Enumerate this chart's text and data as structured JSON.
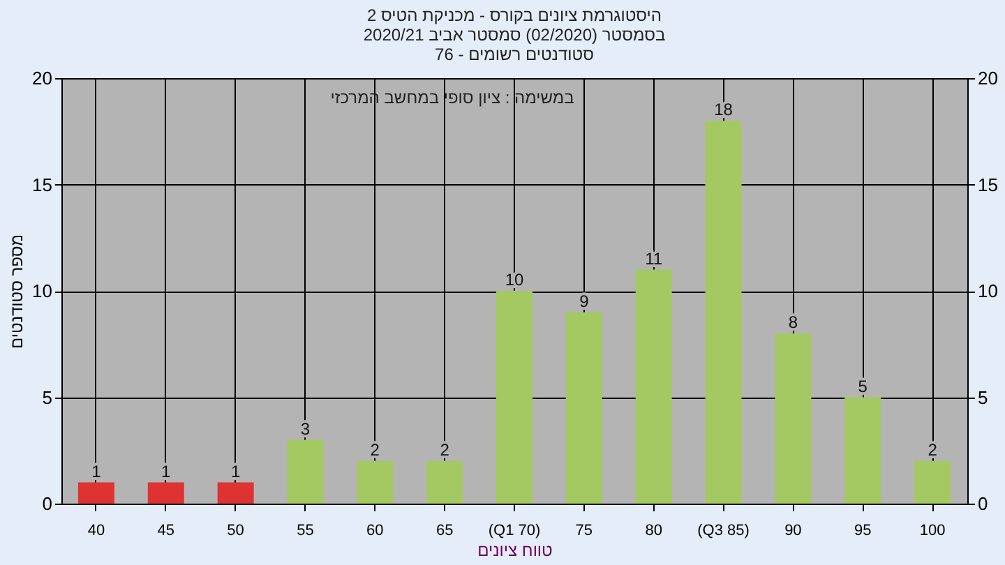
{
  "chart_data": {
    "type": "bar",
    "title": [
      "היסטוגרמת ציונים בקורס - מכניקת הטיס 2",
      "בסמסטר  (02/2020)  סמסטר אביב 2020/21",
      "סטודנטים רשומים - 76"
    ],
    "xlabel": "טווח ציונים",
    "ylabel": "מספר סטודנטים",
    "annotations": [
      "במשימה : ציון סופי במחשב המרכזי"
    ],
    "categories": [
      "40",
      "45",
      "50",
      "55",
      "60",
      "65",
      "(Q1 70)",
      "75",
      "80",
      "(Q3 85)",
      "90",
      "95",
      "100"
    ],
    "values": [
      1,
      1,
      1,
      3,
      2,
      2,
      10,
      9,
      11,
      18,
      8,
      5,
      2
    ],
    "colors": [
      "#dd3333",
      "#dd3333",
      "#dd3333",
      "#a4c862",
      "#a4c862",
      "#a4c862",
      "#a4c862",
      "#a4c862",
      "#a4c862",
      "#a4c862",
      "#a4c862",
      "#a4c862",
      "#a4c862"
    ],
    "ylim": [
      0,
      20
    ],
    "yticks": [
      0,
      5,
      10,
      15,
      20
    ],
    "y2lim": [
      0,
      20
    ],
    "y2ticks": [
      0,
      5,
      10,
      15,
      20
    ],
    "grid": true,
    "data_labels": true
  }
}
